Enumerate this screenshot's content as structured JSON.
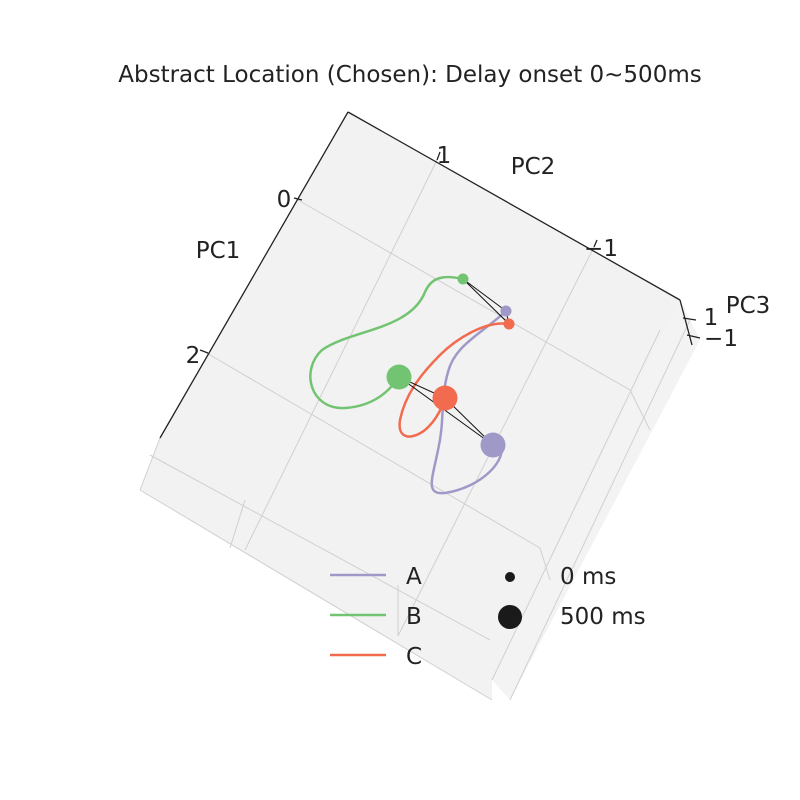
{
  "chart_data": {
    "type": "line",
    "projection": "3d",
    "title": "Abstract Location (Chosen): Delay onset 0~500ms",
    "axes": [
      {
        "label": "PC1",
        "ticks": [
          "0",
          "2"
        ]
      },
      {
        "label": "PC2",
        "ticks": [
          "1",
          "−1"
        ]
      },
      {
        "label": "PC3",
        "ticks": [
          "1",
          "−1"
        ]
      }
    ],
    "grid": true,
    "legend_position": "bottom-center",
    "series": [
      {
        "name": "A",
        "color": "#9f99c8"
      },
      {
        "name": "B",
        "color": "#72c472"
      },
      {
        "name": "C",
        "color": "#f26b4e"
      }
    ],
    "size_legend": [
      {
        "label": "0 ms"
      },
      {
        "label": "500 ms"
      }
    ]
  }
}
